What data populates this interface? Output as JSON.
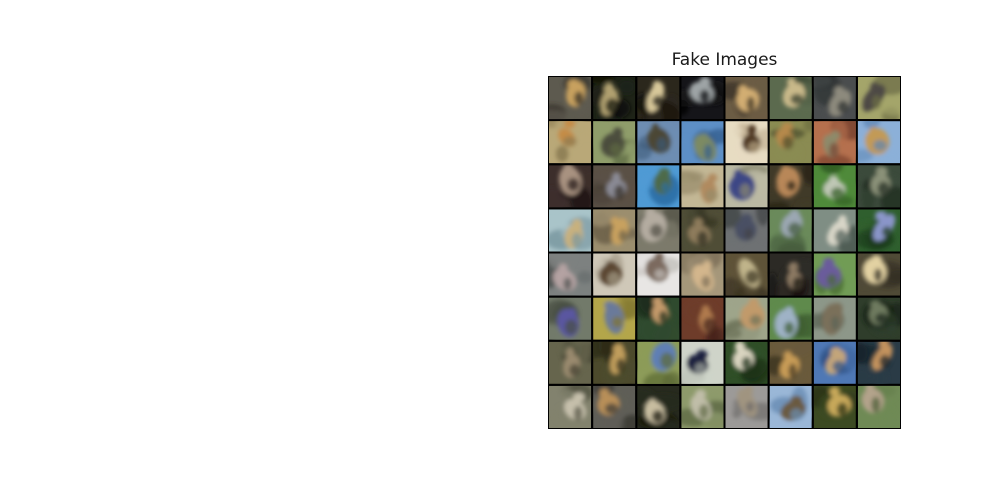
{
  "figure": {
    "title": "Fake Images"
  },
  "grid": {
    "rows": 8,
    "cols": 8,
    "cells": [
      {
        "bg": "#5d5a4f",
        "subject": "#c8a15e",
        "accent": "#2e2a22"
      },
      {
        "bg": "#1e2317",
        "subject": "#b0a070",
        "accent": "#0c0e08"
      },
      {
        "bg": "#2b271c",
        "subject": "#d8c89a",
        "accent": "#15130e"
      },
      {
        "bg": "#151519",
        "subject": "#9ea4a6",
        "accent": "#060608"
      },
      {
        "bg": "#6b5c44",
        "subject": "#d2ad72",
        "accent": "#3a3024"
      },
      {
        "bg": "#5b6a4e",
        "subject": "#c9b98a",
        "accent": "#313a2a"
      },
      {
        "bg": "#4a4d4e",
        "subject": "#8d8a7d",
        "accent": "#2a2c2d"
      },
      {
        "bg": "#a4a56a",
        "subject": "#4d4a45",
        "accent": "#6c6d45"
      },
      {
        "bg": "#b9a878",
        "subject": "#c48c47",
        "accent": "#8b7b52"
      },
      {
        "bg": "#8f9d6a",
        "subject": "#4c4e3c",
        "accent": "#5f6a43"
      },
      {
        "bg": "#6d8db2",
        "subject": "#4b4735",
        "accent": "#3b5876"
      },
      {
        "bg": "#5d8fc6",
        "subject": "#7c8a63",
        "accent": "#35608f"
      },
      {
        "bg": "#e7dcc2",
        "subject": "#4f3922",
        "accent": "#b8a586"
      },
      {
        "bg": "#8a8b52",
        "subject": "#b6894b",
        "accent": "#4c4d2c"
      },
      {
        "bg": "#b5704d",
        "subject": "#8d8a6b",
        "accent": "#7a4430"
      },
      {
        "bg": "#8cb0d8",
        "subject": "#c29a56",
        "accent": "#5d86b5"
      },
      {
        "bg": "#3c2e2b",
        "subject": "#a89280",
        "accent": "#1f1715"
      },
      {
        "bg": "#5a5045",
        "subject": "#8a8a94",
        "accent": "#352e27"
      },
      {
        "bg": "#4f9ad4",
        "subject": "#4d6b48",
        "accent": "#2a6ca3"
      },
      {
        "bg": "#c3b795",
        "subject": "#b08a5e",
        "accent": "#978b6a"
      },
      {
        "bg": "#bbb9a3",
        "subject": "#3d4785",
        "accent": "#8a8870"
      },
      {
        "bg": "#403a28",
        "subject": "#b88758",
        "accent": "#241f14"
      },
      {
        "bg": "#4f8a3a",
        "subject": "#bfc7b5",
        "accent": "#2f5a22"
      },
      {
        "bg": "#3b4a3b",
        "subject": "#8a9178",
        "accent": "#202a20"
      },
      {
        "bg": "#a9c4c9",
        "subject": "#c8b17e",
        "accent": "#7997a0"
      },
      {
        "bg": "#9b8e6e",
        "subject": "#c8a15f",
        "accent": "#6a5f48"
      },
      {
        "bg": "#7c7a6b",
        "subject": "#b4aca0",
        "accent": "#4e4d42"
      },
      {
        "bg": "#4f4d36",
        "subject": "#8e7b5c",
        "accent": "#2f2e1f"
      },
      {
        "bg": "#6e7173",
        "subject": "#4a4f63",
        "accent": "#424547"
      },
      {
        "bg": "#6a8a5a",
        "subject": "#9ba7b2",
        "accent": "#42583a"
      },
      {
        "bg": "#7f8e84",
        "subject": "#d8d6c8",
        "accent": "#4f5d55"
      },
      {
        "bg": "#2f5f2e",
        "subject": "#8a95c9",
        "accent": "#1b3a1b"
      },
      {
        "bg": "#7d8180",
        "subject": "#b4a2a2",
        "accent": "#4d5150"
      },
      {
        "bg": "#cfc8b8",
        "subject": "#5b4730",
        "accent": "#a49b88"
      },
      {
        "bg": "#e8e6e4",
        "subject": "#7c6a5e",
        "accent": "#c2bfbb"
      },
      {
        "bg": "#a5977a",
        "subject": "#d3b68c",
        "accent": "#7a6d55"
      },
      {
        "bg": "#5e5338",
        "subject": "#c0b48a",
        "accent": "#3b3322"
      },
      {
        "bg": "#2c2a25",
        "subject": "#8d7a63",
        "accent": "#151310"
      },
      {
        "bg": "#719c55",
        "subject": "#6a5c9b",
        "accent": "#486b33"
      },
      {
        "bg": "#4f4a36",
        "subject": "#e2d1a2",
        "accent": "#2e2b1f"
      },
      {
        "bg": "#727a6a",
        "subject": "#5a57a0",
        "accent": "#474e42"
      },
      {
        "bg": "#b3a64a",
        "subject": "#6b7a9a",
        "accent": "#7f7530"
      },
      {
        "bg": "#2f4a2e",
        "subject": "#c49a6a",
        "accent": "#1b2e1b"
      },
      {
        "bg": "#6e3c2a",
        "subject": "#b07a4e",
        "accent": "#44221a"
      },
      {
        "bg": "#9ea58a",
        "subject": "#c19a6a",
        "accent": "#6c7258"
      },
      {
        "bg": "#5f8a4c",
        "subject": "#9fb2c6",
        "accent": "#3b5a2f"
      },
      {
        "bg": "#8d9789",
        "subject": "#7a6f5a",
        "accent": "#5b6457"
      },
      {
        "bg": "#2f3d2b",
        "subject": "#6e7a5f",
        "accent": "#1a2418"
      },
      {
        "bg": "#66654d",
        "subject": "#9a8a6e",
        "accent": "#403f2f"
      },
      {
        "bg": "#4c4a2c",
        "subject": "#c09d5c",
        "accent": "#2d2c19"
      },
      {
        "bg": "#8c9b58",
        "subject": "#5f7fb5",
        "accent": "#5d6a36"
      },
      {
        "bg": "#cfd4c9",
        "subject": "#1c2341",
        "accent": "#a4a99e"
      },
      {
        "bg": "#2f4e27",
        "subject": "#d9d4c0",
        "accent": "#1a2e15"
      },
      {
        "bg": "#6a5a3b",
        "subject": "#c79b56",
        "accent": "#433822"
      },
      {
        "bg": "#4f78b5",
        "subject": "#c3a57a",
        "accent": "#2f5185"
      },
      {
        "bg": "#2a3b46",
        "subject": "#c2925d",
        "accent": "#15222a"
      },
      {
        "bg": "#82826d",
        "subject": "#c6c0ac",
        "accent": "#555644"
      },
      {
        "bg": "#5f5e57",
        "subject": "#b88f58",
        "accent": "#3a3934"
      },
      {
        "bg": "#272a1e",
        "subject": "#c8bda0",
        "accent": "#111309"
      },
      {
        "bg": "#8d9a6b",
        "subject": "#c0bda8",
        "accent": "#5f6a45"
      },
      {
        "bg": "#9c9a98",
        "subject": "#a09480",
        "accent": "#6c6a68"
      },
      {
        "bg": "#9ab7d7",
        "subject": "#6b5a3f",
        "accent": "#6b8eb5"
      },
      {
        "bg": "#3c4a22",
        "subject": "#c7a85a",
        "accent": "#232c12"
      },
      {
        "bg": "#6f8a55",
        "subject": "#b3a38b",
        "accent": "#475b35"
      }
    ]
  }
}
